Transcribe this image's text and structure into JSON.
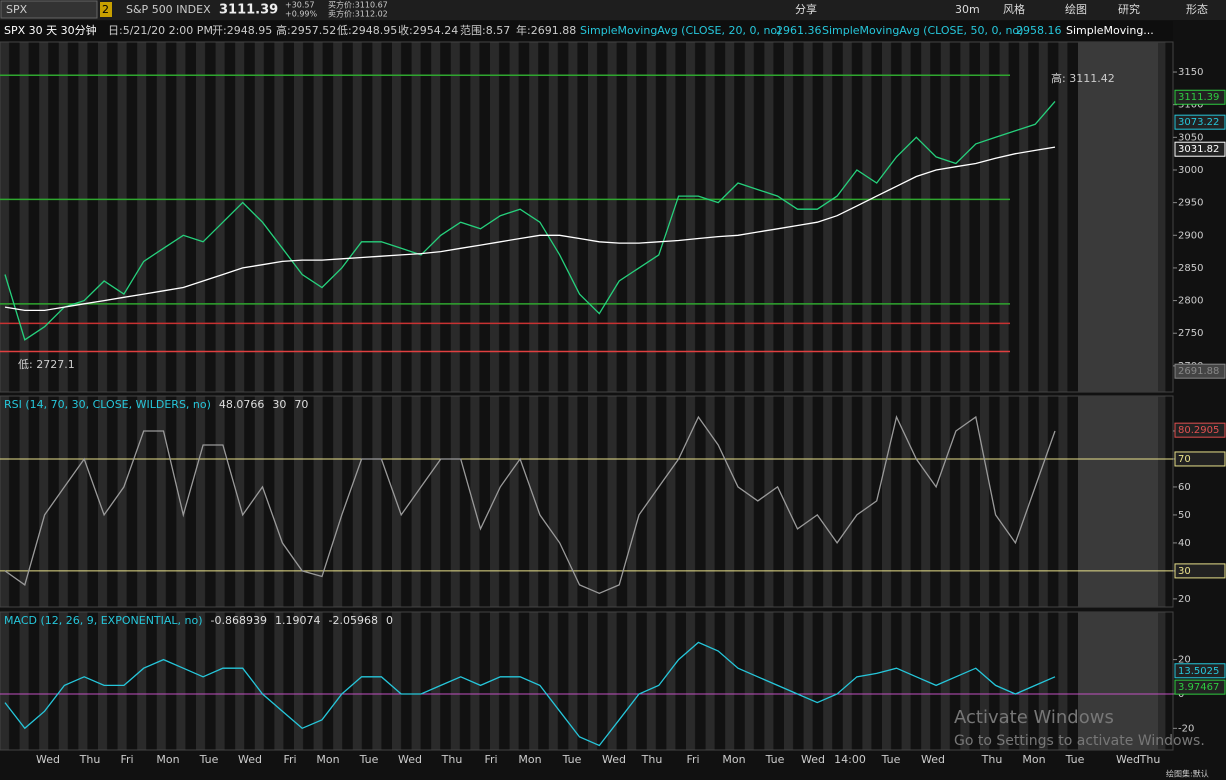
{
  "toolbar": {
    "symbol": "SPX",
    "link": "2",
    "name": "S&P 500 INDEX",
    "last": "3111.39",
    "change": "+30.57",
    "pct": "+0.99%",
    "bid": "买方价:3110.67",
    "ask": "卖方价:3112.02",
    "buttons": [
      "分享",
      "30m",
      "风格",
      "绘图",
      "研究",
      "形态"
    ]
  },
  "legend": {
    "period": "SPX 30 天 30分钟",
    "date": "日:5/21/20 2:00 PM",
    "open": "开:2948.95",
    "high": "高:2957.52",
    "low": "低:2948.95",
    "close": "收:2954.24",
    "range": "范围:8.57",
    "year": "年:2691.88",
    "sma20": "SimpleMovingAvg (CLOSE, 20, 0, no)",
    "sma20_value": "2961.36",
    "sma50": "SimpleMovingAvg (CLOSE, 50, 0, no)",
    "sma50_value": "2958.16",
    "more": "SimpleMoving..."
  },
  "annotations": {
    "high": "高: 3111.42",
    "low": "低: 2727.1"
  },
  "time_axis": {
    "labels": [
      "Wed",
      "Thu",
      "Fri",
      "Mon",
      "Tue",
      "Wed",
      "Fri",
      "Mon",
      "Tue",
      "Wed",
      "Thu",
      "Fri",
      "Mon",
      "Tue",
      "Wed",
      "Thu",
      "Fri",
      "Mon",
      "Tue",
      "Wed",
      "14:00",
      "Tue",
      "Wed",
      "Thu",
      "Mon",
      "Tue",
      "Wed",
      "Thu"
    ]
  },
  "watermark": {
    "title": "Activate Windows",
    "text": "Go to Settings to activate Windows."
  },
  "footer": "绘图集:默认",
  "chart_data": [
    {
      "type": "line",
      "ylim": [
        2660,
        3196
      ],
      "yticks": [
        2700,
        2750,
        2800,
        2850,
        2900,
        2950,
        3000,
        3050,
        3100,
        3150
      ],
      "series": [
        {
          "color": "#26d07c",
          "values": [
            2840,
            2740,
            2760,
            2790,
            2800,
            2830,
            2810,
            2860,
            2880,
            2900,
            2890,
            2920,
            2950,
            2920,
            2880,
            2840,
            2820,
            2850,
            2890,
            2890,
            2880,
            2870,
            2900,
            2920,
            2910,
            2930,
            2940,
            2920,
            2870,
            2810,
            2780,
            2830,
            2850,
            2870,
            2960,
            2960,
            2950,
            2980,
            2970,
            2960,
            2940,
            2940,
            2960,
            3000,
            2980,
            3020,
            3050,
            3020,
            3010,
            3040,
            3050,
            3060,
            3070,
            3105
          ]
        },
        {
          "color": "#ffffff",
          "values": [
            2790,
            2785,
            2785,
            2790,
            2795,
            2800,
            2805,
            2810,
            2815,
            2820,
            2830,
            2840,
            2850,
            2855,
            2860,
            2862,
            2862,
            2864,
            2866,
            2868,
            2870,
            2872,
            2875,
            2880,
            2885,
            2890,
            2895,
            2900,
            2900,
            2895,
            2890,
            2888,
            2888,
            2890,
            2892,
            2895,
            2898,
            2900,
            2905,
            2910,
            2915,
            2920,
            2930,
            2945,
            2960,
            2975,
            2990,
            3000,
            3005,
            3010,
            3018,
            3025,
            3030,
            3035
          ]
        }
      ],
      "levels": [
        {
          "value": 3145,
          "color": "#2fa62f"
        },
        {
          "value": 2955,
          "color": "#2fa62f"
        },
        {
          "value": 2795,
          "color": "#2fa62f"
        },
        {
          "value": 2765,
          "color": "#c83232"
        },
        {
          "value": 2722,
          "color": "#e04040"
        }
      ],
      "tags": [
        {
          "value": 3111.39,
          "color": "#2ecc40"
        },
        {
          "value": 3073.22,
          "color": "#26c6da"
        },
        {
          "value": 3031.82,
          "color": "#ffffff"
        },
        {
          "value": 2691.88,
          "color": "#888888"
        }
      ]
    },
    {
      "type": "line",
      "title": "RSI (14, 70, 30, CLOSE, WILDERS, no)",
      "readout": "48.0766",
      "readout2": "30",
      "readout3": "70",
      "ylim": [
        17.1,
        92.5
      ],
      "yticks": [
        20,
        30,
        40,
        50,
        60,
        70,
        80
      ],
      "series": [
        {
          "color": "#9a9a9a",
          "values": [
            30,
            25,
            50,
            60,
            70,
            50,
            60,
            80,
            80,
            50,
            75,
            75,
            50,
            60,
            40,
            30,
            28,
            50,
            70,
            70,
            50,
            60,
            70,
            70,
            45,
            60,
            70,
            50,
            40,
            25,
            22,
            25,
            50,
            60,
            70,
            85,
            75,
            60,
            55,
            60,
            45,
            50,
            40,
            50,
            55,
            85,
            70,
            60,
            80,
            85,
            50,
            40,
            60,
            80
          ]
        }
      ],
      "levels": [
        {
          "value": 70,
          "color": "#e8e08a"
        },
        {
          "value": 30,
          "color": "#e8e08a"
        }
      ],
      "tags": [
        {
          "value": 80.2905,
          "color": "#e05050"
        },
        {
          "value": 70,
          "color": "#e8e08a"
        },
        {
          "value": 30,
          "color": "#e8e08a"
        }
      ]
    },
    {
      "type": "line",
      "title": "MACD (12, 26, 9, EXPONENTIAL, no)",
      "readout": "-0.868939",
      "readout2": "1.19074",
      "readout3": "-2.05968",
      "readout4": "0",
      "ylim": [
        -32.6,
        47.7
      ],
      "yticks": [
        -20,
        0,
        20
      ],
      "series": [
        {
          "color": "#26c6da",
          "values": [
            -5,
            -20,
            -10,
            5,
            10,
            5,
            5,
            15,
            20,
            15,
            10,
            15,
            15,
            0,
            -10,
            -20,
            -15,
            0,
            10,
            10,
            0,
            0,
            5,
            10,
            5,
            10,
            10,
            5,
            -10,
            -25,
            -30,
            -15,
            0,
            5,
            20,
            30,
            25,
            15,
            10,
            5,
            0,
            -5,
            0,
            10,
            12,
            15,
            10,
            5,
            10,
            15,
            5,
            0,
            5,
            10
          ]
        }
      ],
      "levels": [
        {
          "value": 0,
          "color": "#c050c0"
        }
      ],
      "tags": [
        {
          "value": 13.5025,
          "color": "#26c6da"
        },
        {
          "value": 3.97467,
          "color": "#2ecc40"
        }
      ]
    }
  ]
}
